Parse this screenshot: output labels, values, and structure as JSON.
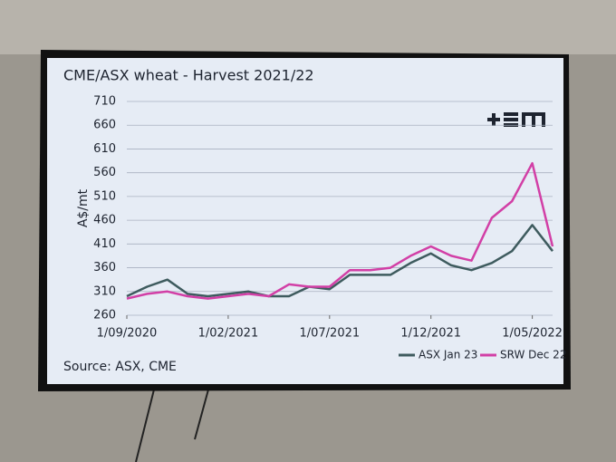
{
  "chart_data": {
    "type": "line",
    "title": "CME/ASX wheat - Harvest 2021/22",
    "y_label": "A$/mt",
    "source": "Source: ASX, CME",
    "x": [
      "1/09/2020",
      "1/10/2020",
      "1/11/2020",
      "1/12/2020",
      "1/01/2021",
      "1/02/2021",
      "1/03/2021",
      "1/04/2021",
      "1/05/2021",
      "1/06/2021",
      "1/07/2021",
      "1/08/2021",
      "1/09/2021",
      "1/10/2021",
      "1/11/2021",
      "1/12/2021",
      "1/01/2022",
      "1/02/2022",
      "1/03/2022",
      "1/04/2022",
      "1/05/2022",
      "1/06/2022"
    ],
    "series": [
      {
        "name": "ASX Jan 23",
        "color": "#3e5b5e",
        "values": [
          300,
          320,
          335,
          305,
          300,
          305,
          310,
          300,
          300,
          320,
          315,
          345,
          345,
          345,
          370,
          390,
          365,
          355,
          370,
          395,
          450,
          395
        ]
      },
      {
        "name": "SRW Dec 22",
        "color": "#d23fa6",
        "values": [
          295,
          305,
          310,
          300,
          295,
          300,
          305,
          300,
          325,
          320,
          320,
          355,
          355,
          360,
          385,
          405,
          385,
          375,
          465,
          500,
          580,
          405
        ]
      }
    ],
    "xlim": [
      "1/09/2020",
      "1/06/2022"
    ],
    "xticks": [
      "1/09/2020",
      "1/02/2021",
      "1/07/2021",
      "1/12/2021",
      "1/05/2022"
    ],
    "ylim": [
      260,
      710
    ],
    "yticks": [
      260,
      310,
      360,
      410,
      460,
      510,
      560,
      610,
      660,
      710
    ],
    "grid": true,
    "legend": "bottom-right"
  }
}
